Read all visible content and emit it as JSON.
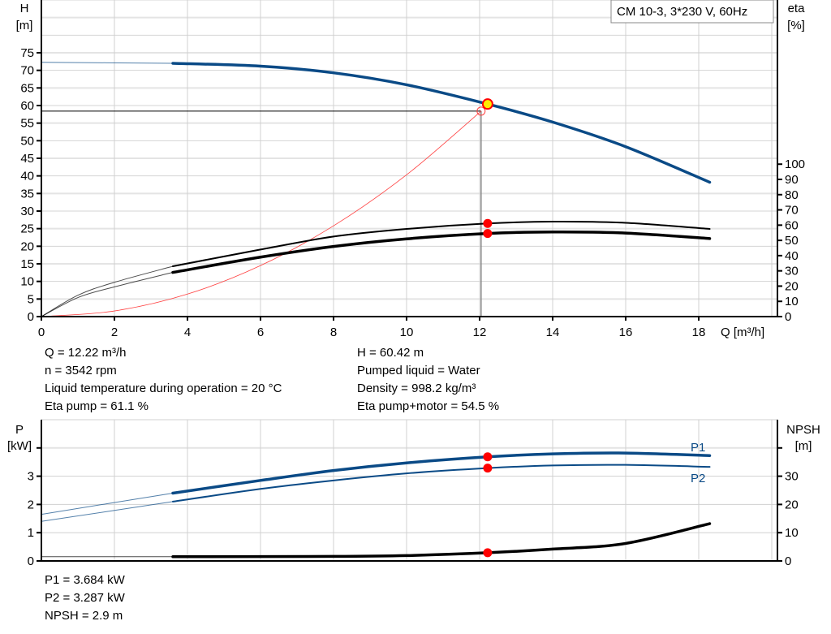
{
  "legend_box": "CM 10-3, 3*230 V, 60Hz",
  "colors": {
    "pump_curve": "#0a4a86",
    "efficiency": "#000000",
    "system_curve": "#ff4040",
    "marker": "#ff0000",
    "op_point_fill": "#ffee00",
    "grid": "#d0d0d0"
  },
  "chart_data": [
    {
      "type": "line",
      "xlabel": "Q [m³/h]",
      "ylabel_left": [
        "H",
        "[m]"
      ],
      "ylabel_right": [
        "eta",
        "[%]"
      ],
      "xlim": [
        0,
        20
      ],
      "ylim_left": [
        0,
        90
      ],
      "ylim_right": [
        0,
        207.7
      ],
      "x_ticks": [
        "0",
        "2",
        "4",
        "6",
        "8",
        "10",
        "12",
        "14",
        "16",
        "18"
      ],
      "y_ticks_left": [
        "0",
        "5",
        "10",
        "15",
        "20",
        "25",
        "30",
        "35",
        "40",
        "45",
        "50",
        "55",
        "60",
        "65",
        "70",
        "75"
      ],
      "y_ticks_right": [
        "0",
        "10",
        "20",
        "30",
        "40",
        "50",
        "60",
        "70",
        "80",
        "90",
        "100"
      ],
      "grid": true,
      "series": [
        {
          "id": "H",
          "axis": "left",
          "extrapolated": [
            [
              0,
              72.3
            ],
            [
              3.6,
              72
            ]
          ],
          "points": [
            [
              3.6,
              72
            ],
            [
              6,
              71.2
            ],
            [
              8,
              69.3
            ],
            [
              10,
              65.9
            ],
            [
              12.22,
              60.42
            ],
            [
              14,
              55.3
            ],
            [
              16,
              48.3
            ],
            [
              18.3,
              38.2
            ]
          ]
        },
        {
          "id": "eta_pump",
          "axis": "right",
          "extrapolated": [
            [
              0,
              0
            ],
            [
              1,
              14
            ],
            [
              2,
              22.5
            ],
            [
              3.6,
              33
            ]
          ],
          "points": [
            [
              3.6,
              33
            ],
            [
              6,
              44
            ],
            [
              8,
              52.5
            ],
            [
              10,
              57.5
            ],
            [
              12.22,
              61.1
            ],
            [
              14,
              62.3
            ],
            [
              16,
              61.5
            ],
            [
              18.3,
              57.5
            ]
          ]
        },
        {
          "id": "eta_pump_motor",
          "axis": "right",
          "extrapolated": [
            [
              0,
              0
            ],
            [
              1,
              12.5
            ],
            [
              2,
              19.5
            ],
            [
              3.6,
              29
            ]
          ],
          "points": [
            [
              3.6,
              29
            ],
            [
              6,
              39
            ],
            [
              8,
              46
            ],
            [
              10,
              51
            ],
            [
              12.22,
              54.5
            ],
            [
              14,
              55.5
            ],
            [
              16,
              54.8
            ],
            [
              18.3,
              51.2
            ]
          ]
        },
        {
          "id": "system",
          "axis": "left",
          "points": [
            [
              0,
              0
            ],
            [
              2,
              1.6
            ],
            [
              4,
              6.4
            ],
            [
              6,
              14.5
            ],
            [
              8,
              25.8
            ],
            [
              10,
              40.3
            ],
            [
              12.04,
              58.4
            ]
          ]
        }
      ],
      "duty_point": [
        12.04,
        58.4
      ],
      "operating_point": {
        "Q": 12.22,
        "H": 60.42,
        "eta_pump": 61.1,
        "eta_pump_motor": 54.5
      }
    },
    {
      "type": "line",
      "ylabel_left": [
        "P",
        "[kW]"
      ],
      "ylabel_right": [
        "NPSH",
        "[m]"
      ],
      "xlim": [
        0,
        20
      ],
      "ylim_left": [
        0,
        5
      ],
      "ylim_right": [
        0,
        50
      ],
      "y_ticks_left": [
        "0",
        "1",
        "2",
        "3",
        ""
      ],
      "y_ticks_right": [
        "0",
        "10",
        "20",
        "30",
        ""
      ],
      "grid": true,
      "series": [
        {
          "id": "P1",
          "name": "P1",
          "axis": "left",
          "extrapolated": [
            [
              0,
              1.65
            ],
            [
              3.6,
              2.4
            ]
          ],
          "points": [
            [
              3.6,
              2.4
            ],
            [
              6,
              2.85
            ],
            [
              8,
              3.2
            ],
            [
              10,
              3.47
            ],
            [
              12.22,
              3.684
            ],
            [
              14,
              3.79
            ],
            [
              16,
              3.82
            ],
            [
              18.3,
              3.73
            ]
          ]
        },
        {
          "id": "P2",
          "name": "P2",
          "axis": "left",
          "extrapolated": [
            [
              0,
              1.4
            ],
            [
              3.6,
              2.1
            ]
          ],
          "points": [
            [
              3.6,
              2.1
            ],
            [
              6,
              2.55
            ],
            [
              8,
              2.85
            ],
            [
              10,
              3.1
            ],
            [
              12.22,
              3.287
            ],
            [
              14,
              3.38
            ],
            [
              16,
              3.4
            ],
            [
              18.3,
              3.33
            ]
          ]
        },
        {
          "id": "NPSH",
          "axis": "right",
          "extrapolated": [
            [
              0,
              1.5
            ],
            [
              3.6,
              1.5
            ]
          ],
          "points": [
            [
              3.6,
              1.5
            ],
            [
              8,
              1.6
            ],
            [
              10,
              1.9
            ],
            [
              12.22,
              2.9
            ],
            [
              14,
              4.2
            ],
            [
              16,
              6.2
            ],
            [
              18.3,
              13.2
            ]
          ]
        }
      ],
      "operating_point": {
        "Q": 12.22,
        "P1": 3.684,
        "P2": 3.287,
        "NPSH": 2.9
      }
    }
  ],
  "info_left": [
    "Q = 12.22 m³/h",
    "n = 3542 rpm",
    "Liquid temperature during operation = 20 °C",
    "Eta pump = 61.1 %"
  ],
  "info_right": [
    "H = 60.42 m",
    "Pumped liquid = Water",
    "Density = 998.2 kg/m³",
    "Eta pump+motor = 54.5 %"
  ],
  "info_bottom": [
    "P1 = 3.684 kW",
    "P2 = 3.287 kW",
    "NPSH = 2.9 m"
  ]
}
